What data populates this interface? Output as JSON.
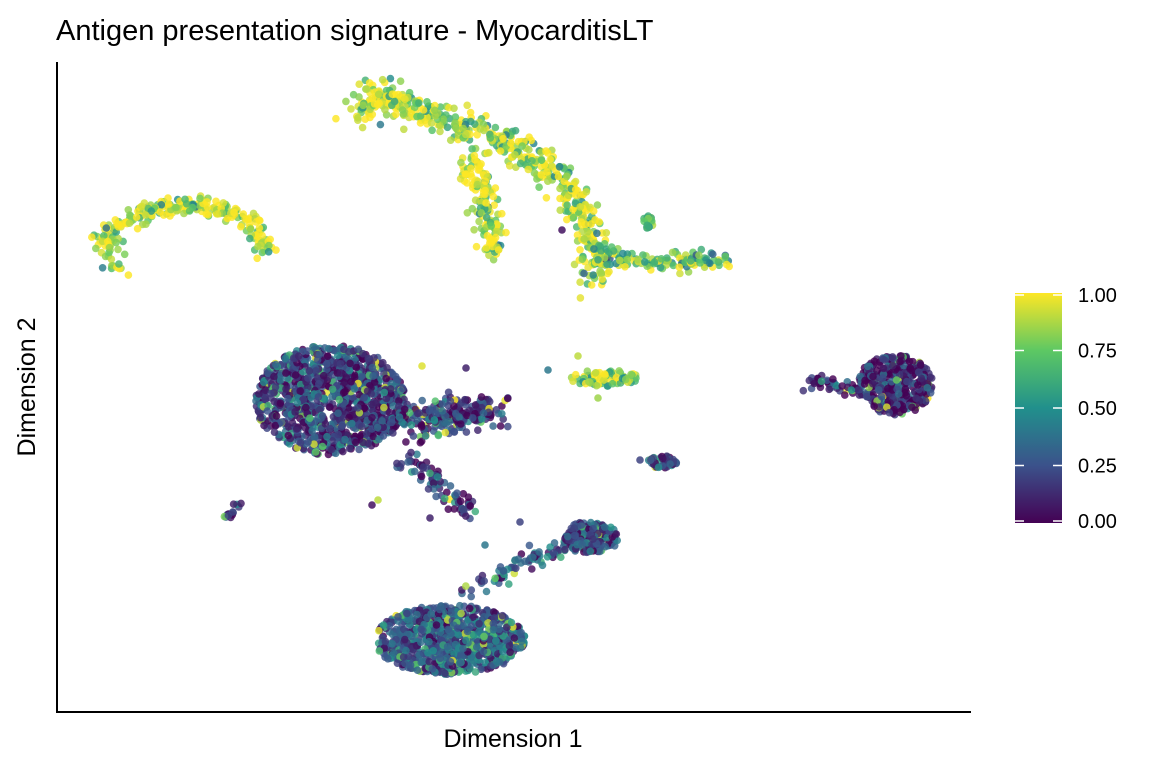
{
  "chart_data": {
    "type": "scatter",
    "title": "Antigen presentation signature - MyocarditisLT",
    "xlabel": "Dimension 1",
    "ylabel": "Dimension 2",
    "colorbar": {
      "min": 0.0,
      "max": 1.0,
      "ticks": [
        "0.00",
        "0.25",
        "0.50",
        "0.75",
        "1.00"
      ],
      "colormap": [
        "#440154",
        "#3b528b",
        "#21908c",
        "#5dc863",
        "#fde725"
      ]
    },
    "grid": false,
    "legend": "right",
    "clusters": [
      {
        "id": "top-left-arc",
        "score_mean": 0.88
      },
      {
        "id": "top-center-band",
        "score_mean": 0.9
      },
      {
        "id": "top-right-tail",
        "score_mean": 0.7
      },
      {
        "id": "large-center-left",
        "score_mean": 0.18
      },
      {
        "id": "center-small-yellow",
        "score_mean": 0.85
      },
      {
        "id": "right-cluster",
        "score_mean": 0.1
      },
      {
        "id": "small-center-right",
        "score_mean": 0.15
      },
      {
        "id": "bottom-center",
        "score_mean": 0.3
      },
      {
        "id": "bottom-right-small",
        "score_mean": 0.25
      },
      {
        "id": "tiny-left",
        "score_mean": 0.15
      }
    ]
  }
}
